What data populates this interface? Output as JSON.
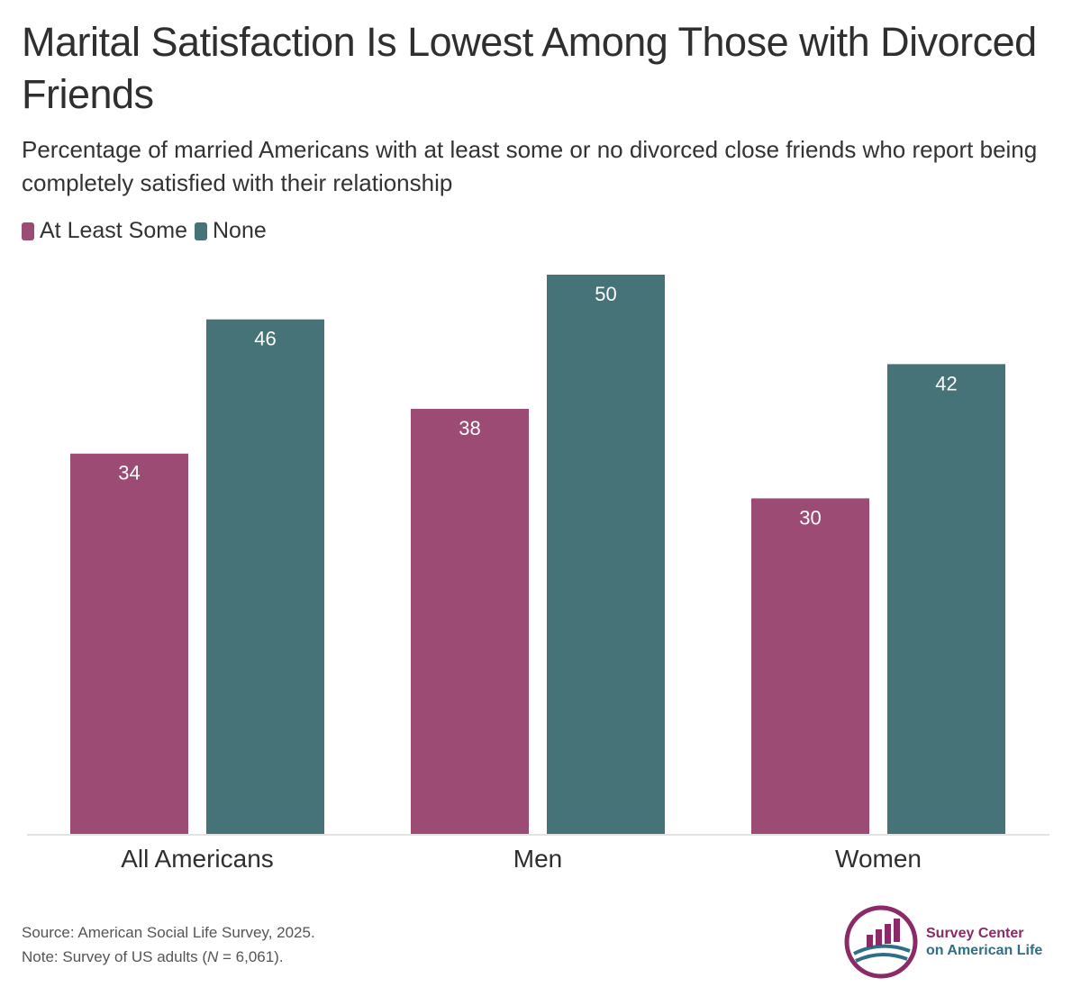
{
  "title": "Marital Satisfaction Is Lowest Among Those with Divorced Friends",
  "subtitle": "Percentage of married Americans with at least some or no divorced close friends who report being completely satisfied with their relationship",
  "colors": {
    "at_least_some": "#9c4b75",
    "none": "#457378",
    "baseline": "#e3e3e3"
  },
  "legend": {
    "at_least_some": "At Least Some",
    "none": "None"
  },
  "chart_data": {
    "type": "bar",
    "categories": [
      "All Americans",
      "Men",
      "Women"
    ],
    "series": [
      {
        "name": "At Least Some",
        "values": [
          34,
          38,
          30
        ]
      },
      {
        "name": "None",
        "values": [
          46,
          50,
          42
        ]
      }
    ],
    "title": "Marital Satisfaction Is Lowest Among Those with Divorced Friends",
    "xlabel": "",
    "ylabel": "",
    "ylim": [
      0,
      50
    ],
    "grid": false,
    "legend_position": "top-left"
  },
  "footer": {
    "source": "Source: American Social Life Survey, 2025.",
    "note_prefix": "Note: Survey of US adults (",
    "note_n": "N",
    "note_suffix": " = 6,061).",
    "logo_line1": "Survey Center",
    "logo_line2": "on American Life",
    "logo_icon": "survey-center-logo-icon"
  }
}
